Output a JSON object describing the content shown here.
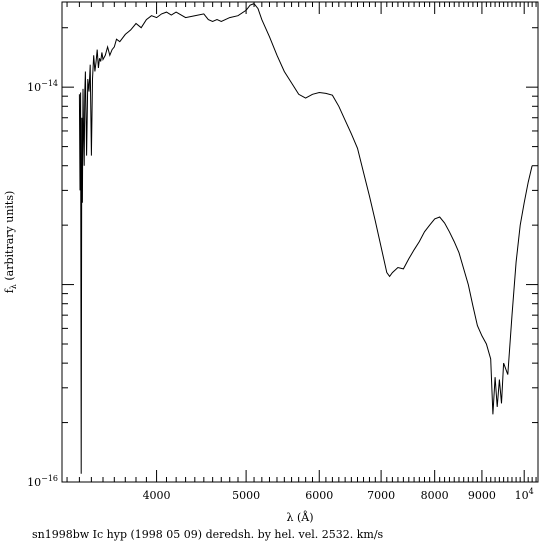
{
  "chart_data": {
    "type": "line",
    "title": "",
    "caption": "sn1998bw Ic hyp (1998 05 09) deredsh. by hel. vel.  2532. km/s",
    "xlabel": "λ (Å)",
    "ylabel": "f",
    "ylabel_sub": "λ",
    "ylabel_rest": " (arbitrary units)",
    "x_scale": "log",
    "y_scale": "log",
    "xlim": [
      3160,
      10350
    ],
    "ylim": [
      1e-16,
      2.7e-14
    ],
    "x_ticks": [
      {
        "value": 4000,
        "label": "4000"
      },
      {
        "value": 5000,
        "label": "5000"
      },
      {
        "value": 6000,
        "label": "6000"
      },
      {
        "value": 7000,
        "label": "7000"
      },
      {
        "value": 8000,
        "label": "8000"
      },
      {
        "value": 9000,
        "label": "9000"
      },
      {
        "value": 10000,
        "label": "10",
        "sup": "4"
      }
    ],
    "y_ticks": [
      {
        "value": 1e-14,
        "label": "10",
        "sup": "−14"
      },
      {
        "value": 1e-16,
        "label": "10",
        "sup": "−16"
      }
    ],
    "grid": false,
    "legend": "none",
    "series": [
      {
        "x": [
          3300,
          3305,
          3310,
          3315,
          3320,
          3325,
          3330,
          3335,
          3340,
          3345,
          3350,
          3360,
          3370,
          3380,
          3390,
          3400,
          3410,
          3420,
          3430,
          3440,
          3450,
          3460,
          3470,
          3480,
          3490,
          3500,
          3520,
          3540,
          3560,
          3580,
          3600,
          3620,
          3650,
          3700,
          3750,
          3800,
          3850,
          3900,
          3950,
          4000,
          4050,
          4100,
          4150,
          4200,
          4300,
          4400,
          4500,
          4550,
          4600,
          4650,
          4700,
          4800,
          4900,
          5000,
          5050,
          5100,
          5150,
          5200,
          5300,
          5400,
          5500,
          5600,
          5700,
          5800,
          5900,
          6000,
          6100,
          6200,
          6300,
          6400,
          6500,
          6600,
          6700,
          6800,
          6900,
          7000,
          7100,
          7150,
          7200,
          7300,
          7400,
          7500,
          7600,
          7700,
          7800,
          7900,
          8000,
          8100,
          8200,
          8300,
          8400,
          8500,
          8600,
          8700,
          8800,
          8900,
          9000,
          9100,
          9200,
          9250,
          9300,
          9350,
          9400,
          9450,
          9500,
          9600,
          9700,
          9800,
          9900,
          10000,
          10100,
          10200
        ],
        "y": [
          9.2e-15,
          3e-15,
          9.4e-15,
          1.1e-16,
          7e-15,
          2.6e-15,
          9.8e-15,
          6e-15,
          4e-15,
          9.5e-15,
          1.2e-14,
          4.5e-15,
          1.1e-14,
          9.5e-15,
          1.3e-14,
          4.5e-15,
          1.1e-14,
          1.45e-14,
          1.2e-14,
          1.35e-14,
          1.55e-14,
          1.25e-14,
          1.4e-14,
          1.35e-14,
          1.5e-14,
          1.38e-14,
          1.45e-14,
          1.6e-14,
          1.45e-14,
          1.55e-14,
          1.6e-14,
          1.75e-14,
          1.7e-14,
          1.85e-14,
          1.95e-14,
          2.1e-14,
          2e-14,
          2.2e-14,
          2.3e-14,
          2.25e-14,
          2.35e-14,
          2.4e-14,
          2.32e-14,
          2.4e-14,
          2.25e-14,
          2.3e-14,
          2.35e-14,
          2.2e-14,
          2.15e-14,
          2.2e-14,
          2.15e-14,
          2.25e-14,
          2.3e-14,
          2.45e-14,
          2.6e-14,
          2.65e-14,
          2.5e-14,
          2.2e-14,
          1.8e-14,
          1.45e-14,
          1.2e-14,
          1.05e-14,
          9.2e-15,
          8.8e-15,
          9.2e-15,
          9.4e-15,
          9.3e-15,
          9.1e-15,
          8e-15,
          6.8e-15,
          5.8e-15,
          4.9e-15,
          3.7e-15,
          2.8e-15,
          2.1e-15,
          1.55e-15,
          1.15e-15,
          1.1e-15,
          1.15e-15,
          1.22e-15,
          1.2e-15,
          1.35e-15,
          1.5e-15,
          1.65e-15,
          1.85e-15,
          2e-15,
          2.15e-15,
          2.2e-15,
          2.05e-15,
          1.85e-15,
          1.65e-15,
          1.45e-15,
          1.2e-15,
          1e-15,
          7.8e-16,
          6.2e-16,
          5.5e-16,
          5e-16,
          4.2e-16,
          2.2e-16,
          3.4e-16,
          2.4e-16,
          3.3e-16,
          2.5e-16,
          4e-16,
          3.5e-16,
          7e-16,
          1.3e-15,
          2e-15,
          2.6e-15,
          3.3e-15,
          4e-15
        ]
      }
    ]
  }
}
